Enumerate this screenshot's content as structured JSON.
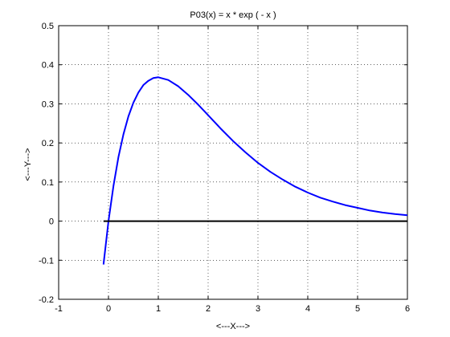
{
  "chart_data": {
    "type": "line",
    "title": "P03(x) = x * exp ( - x )",
    "xlabel": "<---X--->",
    "ylabel": "<---Y--->",
    "xlim": [
      -1,
      6
    ],
    "ylim": [
      -0.2,
      0.5
    ],
    "grid": true,
    "x_ticks": [
      -1,
      0,
      1,
      2,
      3,
      4,
      5,
      6
    ],
    "y_ticks": [
      -0.2,
      -0.1,
      0,
      0.1,
      0.2,
      0.3,
      0.4,
      0.5
    ],
    "x_tick_labels": [
      "-1",
      "0",
      "1",
      "2",
      "3",
      "4",
      "5",
      "6"
    ],
    "y_tick_labels": [
      "-0.2",
      "-0.1",
      "0",
      "0.1",
      "0.2",
      "0.3",
      "0.4",
      "0.5"
    ],
    "series": [
      {
        "color": "#0000ff",
        "x": [
          -0.1,
          0.0,
          0.1,
          0.2,
          0.3,
          0.4,
          0.5,
          0.6,
          0.7,
          0.8,
          0.9,
          1.0,
          1.2,
          1.4,
          1.6,
          1.8,
          2.0,
          2.25,
          2.5,
          2.75,
          3.0,
          3.25,
          3.5,
          3.75,
          4.0,
          4.25,
          4.5,
          4.75,
          5.0,
          5.25,
          5.5,
          5.75,
          6.0
        ],
        "y": [
          -0.111,
          0.0,
          0.09,
          0.164,
          0.222,
          0.268,
          0.303,
          0.329,
          0.348,
          0.359,
          0.366,
          0.368,
          0.361,
          0.345,
          0.323,
          0.298,
          0.271,
          0.237,
          0.205,
          0.176,
          0.149,
          0.126,
          0.106,
          0.088,
          0.073,
          0.06,
          0.05,
          0.041,
          0.034,
          0.027,
          0.022,
          0.018,
          0.015
        ]
      },
      {
        "color": "#000000",
        "x": [
          -0.1,
          6.0
        ],
        "y": [
          0,
          0
        ]
      }
    ]
  }
}
